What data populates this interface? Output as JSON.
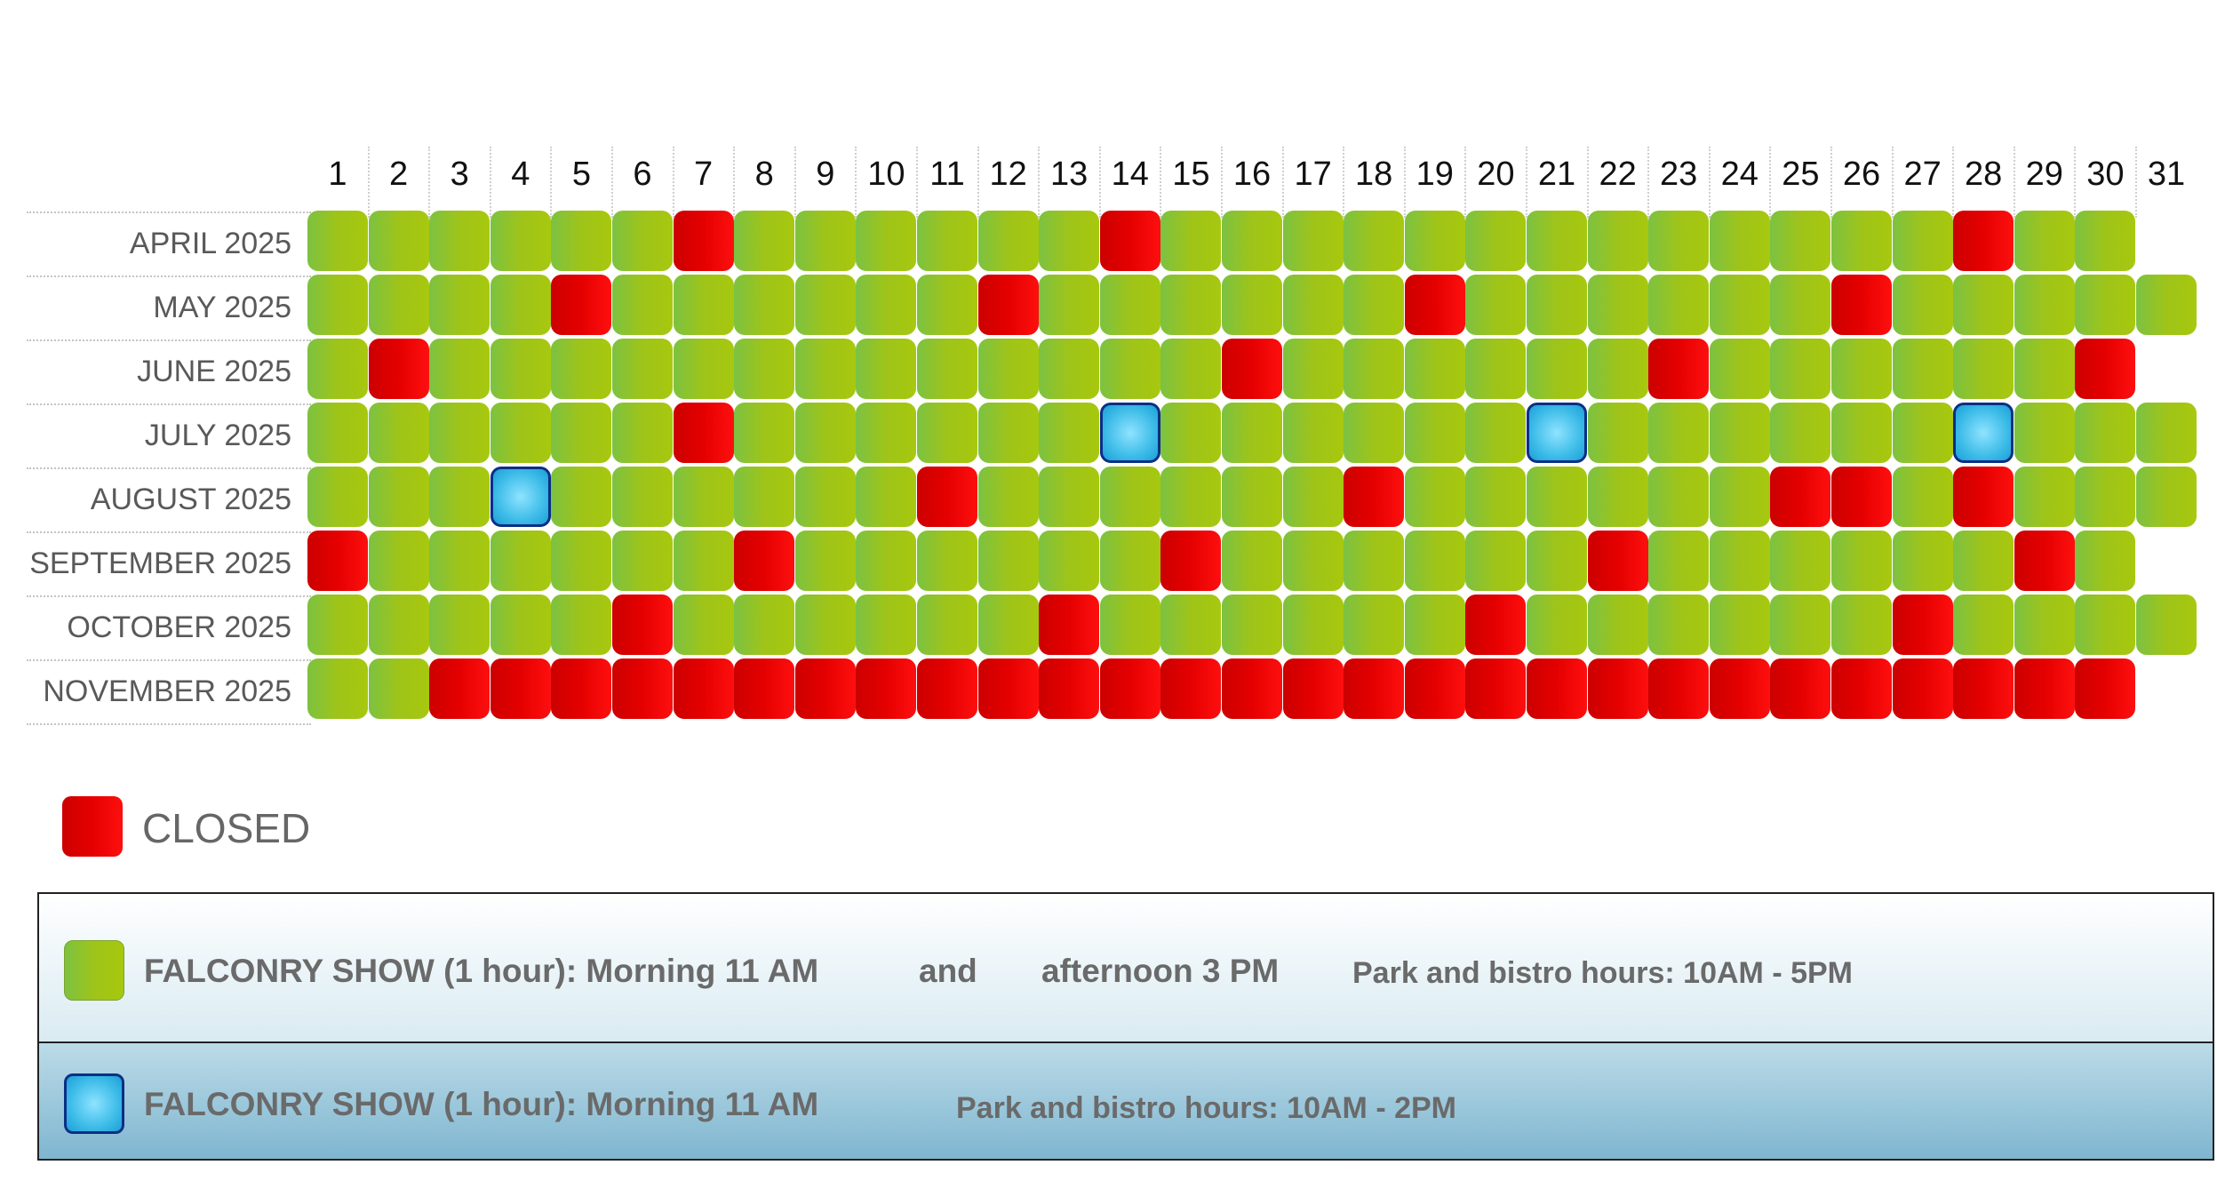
{
  "chart_data": {
    "type": "heatmap",
    "days": [
      "1",
      "2",
      "3",
      "4",
      "5",
      "6",
      "7",
      "8",
      "9",
      "10",
      "11",
      "12",
      "13",
      "14",
      "15",
      "16",
      "17",
      "18",
      "19",
      "20",
      "21",
      "22",
      "23",
      "24",
      "25",
      "26",
      "27",
      "28",
      "29",
      "30",
      "31"
    ],
    "rows": [
      {
        "label": "APRIL 2025",
        "days": 30,
        "closed": [
          7,
          14,
          28
        ],
        "short": []
      },
      {
        "label": "MAY 2025",
        "days": 31,
        "closed": [
          5,
          12,
          19,
          26
        ],
        "short": []
      },
      {
        "label": "JUNE 2025",
        "days": 30,
        "closed": [
          2,
          16,
          23,
          30
        ],
        "short": []
      },
      {
        "label": "JULY 2025",
        "days": 31,
        "closed": [
          7
        ],
        "short": [
          14,
          21,
          28
        ]
      },
      {
        "label": "AUGUST 2025",
        "days": 31,
        "closed": [
          11,
          18,
          25,
          26,
          28
        ],
        "short": [
          4
        ]
      },
      {
        "label": "SEPTEMBER 2025",
        "days": 30,
        "closed": [
          1,
          8,
          15,
          22,
          29
        ],
        "short": []
      },
      {
        "label": "OCTOBER 2025",
        "days": 31,
        "closed": [
          6,
          13,
          20,
          27
        ],
        "short": []
      },
      {
        "label": "NOVEMBER 2025",
        "days": 30,
        "closed": [
          3,
          4,
          5,
          6,
          7,
          8,
          9,
          10,
          11,
          12,
          13,
          14,
          15,
          16,
          17,
          18,
          19,
          20,
          21,
          22,
          23,
          24,
          25,
          26,
          27,
          28,
          29,
          30
        ],
        "short": []
      }
    ],
    "colors": {
      "open": "#9fc419",
      "closed": "#e50000",
      "short": "#3fbde9"
    }
  },
  "legend": {
    "closed": "CLOSED",
    "open": {
      "show": "FALCONRY SHOW (1 hour): Morning 11 AM",
      "and": "and",
      "afternoon": "afternoon 3 PM",
      "hours": "Park and bistro hours: 10AM - 5PM"
    },
    "short": {
      "show": "FALCONRY SHOW (1 hour): Morning 11 AM",
      "hours": "Park and bistro hours: 10AM - 2PM"
    }
  }
}
